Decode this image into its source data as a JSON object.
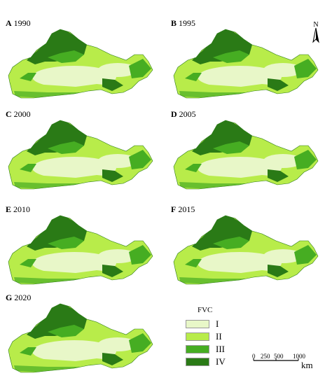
{
  "panels": [
    {
      "letter": "A",
      "year": "1990"
    },
    {
      "letter": "B",
      "year": "1995"
    },
    {
      "letter": "C",
      "year": "2000"
    },
    {
      "letter": "D",
      "year": "2005"
    },
    {
      "letter": "E",
      "year": "2010"
    },
    {
      "letter": "F",
      "year": "2015"
    },
    {
      "letter": "G",
      "year": "2020"
    }
  ],
  "legend": {
    "title": "FVC",
    "items": [
      {
        "label": "I",
        "color": "#e8f7c8"
      },
      {
        "label": "II",
        "color": "#b8ec4a"
      },
      {
        "label": "III",
        "color": "#46ad22"
      },
      {
        "label": "IV",
        "color": "#2a7a16"
      }
    ]
  },
  "north": {
    "label": "N"
  },
  "scale": {
    "ticks": [
      "0",
      "250",
      "500",
      "1000"
    ],
    "unit": "km"
  }
}
